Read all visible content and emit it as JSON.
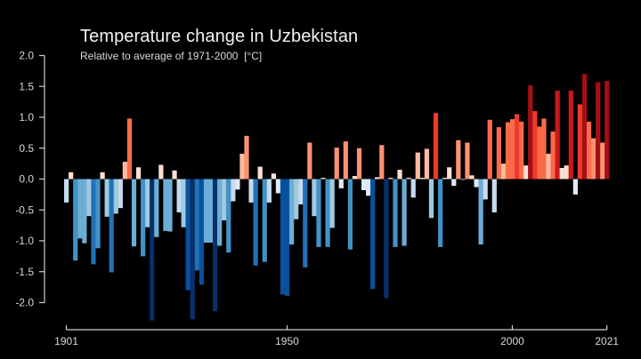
{
  "chart_data": {
    "type": "bar",
    "title": "Temperature change in Uzbekistan",
    "subtitle": "Relative to average of 1971-2000  [°C]",
    "xlabel": "",
    "ylabel": "",
    "ylim": [
      -2.0,
      2.0
    ],
    "xlim": [
      1901,
      2021
    ],
    "grid": false,
    "legend": "none",
    "y_ticks": [
      2.0,
      1.5,
      1.0,
      0.5,
      0.0,
      -0.5,
      -1.0,
      -1.5,
      -2.0
    ],
    "y_tick_labels": [
      "2.0",
      "1.5",
      "1.0",
      "0.5",
      "0.0",
      "-0.5",
      "-1.0",
      "-1.5",
      "-2.0"
    ],
    "x_ticks": [
      1901,
      1950,
      2000,
      2021
    ],
    "x_tick_labels": [
      "1901",
      "1950",
      "2000",
      "2021"
    ],
    "color_scale": {
      "negative": [
        "#08306b",
        "#08519c",
        "#2171b5",
        "#4292c6",
        "#6baed6",
        "#9ecae1",
        "#c6dbef",
        "#deebf7"
      ],
      "positive": [
        "#fee0d2",
        "#fcbba1",
        "#fc9272",
        "#fb6a4a",
        "#ef3b2c",
        "#cb181d",
        "#a50f15"
      ]
    },
    "start_year": 1901,
    "values": [
      -0.38,
      0.11,
      -1.32,
      -0.96,
      -1.04,
      -0.6,
      -1.38,
      -1.12,
      0.11,
      -0.61,
      -1.51,
      -0.56,
      -0.47,
      0.28,
      0.98,
      -1.09,
      0.19,
      -1.25,
      -0.78,
      -2.29,
      -0.94,
      0.23,
      -0.84,
      -0.85,
      0.14,
      -0.54,
      -0.78,
      -1.8,
      -2.27,
      -1.48,
      -1.71,
      -1.03,
      -1.03,
      -2.14,
      -1.08,
      -0.67,
      -1.19,
      -0.36,
      -0.17,
      0.41,
      0.7,
      -0.38,
      -1.4,
      0.2,
      -1.34,
      -0.38,
      0.09,
      -0.23,
      -1.87,
      -1.89,
      -1.06,
      -0.65,
      -0.41,
      -1.43,
      0.59,
      -0.6,
      -1.1,
      0.02,
      -1.1,
      -0.79,
      0.51,
      -0.15,
      0.61,
      -1.14,
      0.05,
      0.5,
      -0.18,
      -0.27,
      -1.78,
      0.03,
      0.55,
      -1.93,
      0.02,
      -1.1,
      0.15,
      -1.08,
      0.02,
      -0.3,
      0.43,
      0.02,
      0.49,
      -0.63,
      1.07,
      -1.1,
      0.02,
      0.19,
      -0.11,
      0.63,
      -0.01,
      0.59,
      0.06,
      -0.13,
      -1.06,
      -0.33,
      0.96,
      -0.54,
      0.84,
      0.25,
      0.92,
      0.97,
      1.05,
      0.93,
      0.22,
      1.52,
      1.1,
      0.85,
      0.98,
      0.41,
      0.77,
      1.43,
      0.18,
      0.22,
      1.43,
      -0.25,
      1.21,
      1.7,
      0.93,
      0.66,
      1.57,
      0.59,
      1.59
    ]
  }
}
